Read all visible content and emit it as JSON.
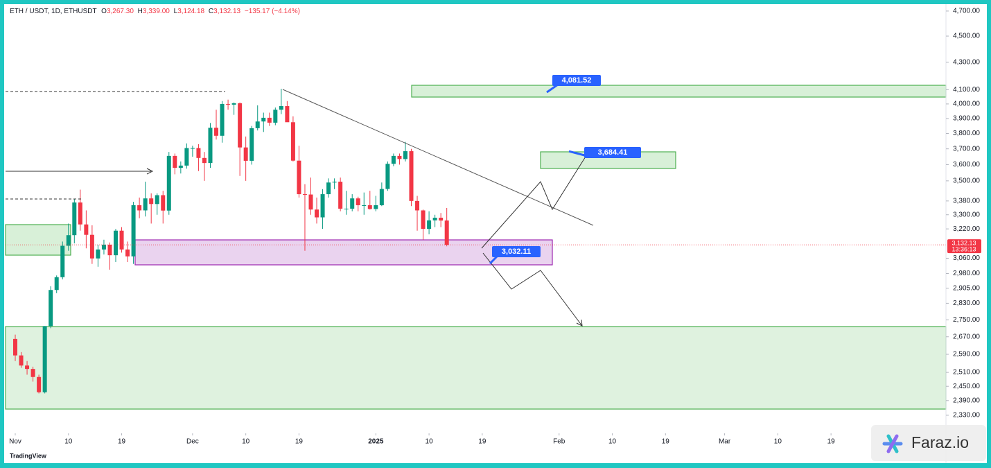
{
  "header": {
    "symbol": "ETH / USDT, 1D, ETHUSDT",
    "o_key": "O",
    "o": "3,267.30",
    "h_key": "H",
    "h": "3,339.00",
    "l_key": "L",
    "l": "3,124.18",
    "c_key": "C",
    "c": "3,132.13",
    "change": "−135.17 (−4.14%)"
  },
  "chart_data": {
    "type": "candlestick",
    "log_scale": true,
    "grid": false,
    "up_color": "#089981",
    "down_color": "#f23645",
    "x": [
      "Nov 1",
      "Nov 2",
      "Nov 3",
      "Nov 4",
      "Nov 5",
      "Nov 6",
      "Nov 7",
      "Nov 8",
      "Nov 9",
      "Nov 10",
      "Nov 11",
      "Nov 12",
      "Nov 13",
      "Nov 14",
      "Nov 15",
      "Nov 16",
      "Nov 17",
      "Nov 18",
      "Nov 19",
      "Nov 20",
      "Nov 21",
      "Nov 22",
      "Nov 23",
      "Nov 24",
      "Nov 25",
      "Nov 26",
      "Nov 27",
      "Nov 28",
      "Nov 29",
      "Nov 30",
      "Dec 1",
      "Dec 2",
      "Dec 3",
      "Dec 4",
      "Dec 5",
      "Dec 6",
      "Dec 7",
      "Dec 8",
      "Dec 9",
      "Dec 10",
      "Dec 11",
      "Dec 12",
      "Dec 13",
      "Dec 14",
      "Dec 15",
      "Dec 16",
      "Dec 17",
      "Dec 18",
      "Dec 19",
      "Dec 20",
      "Dec 21",
      "Dec 22",
      "Dec 23",
      "Dec 24",
      "Dec 25",
      "Dec 26",
      "Dec 27",
      "Dec 28",
      "Dec 29",
      "Dec 30",
      "Dec 31",
      "Jan 1",
      "Jan 2",
      "Jan 3",
      "Jan 4",
      "Jan 5",
      "Jan 6",
      "Jan 7",
      "Jan 8",
      "Jan 9",
      "Jan 10",
      "Jan 11",
      "Jan 12",
      "Jan 13"
    ],
    "open": [
      2660,
      2585,
      2540,
      2525,
      2490,
      2425,
      2720,
      2896,
      2961,
      3127,
      3185,
      3371,
      3245,
      3187,
      3059,
      3107,
      3133,
      3076,
      3210,
      3107,
      3070,
      3355,
      3325,
      3395,
      3362,
      3414,
      3324,
      3655,
      3580,
      3594,
      3705,
      3705,
      3642,
      3610,
      3838,
      3785,
      4000,
      3995,
      4005,
      3709,
      3624,
      3835,
      3880,
      3905,
      3872,
      3960,
      3985,
      3875,
      3625,
      3420,
      3418,
      3330,
      3285,
      3420,
      3490,
      3495,
      3335,
      3335,
      3395,
      3355,
      3355,
      3333,
      3355,
      3451,
      3605,
      3655,
      3635,
      3685,
      3380,
      3325,
      3220,
      3268,
      3283,
      3267.3
    ],
    "high": [
      2680,
      2600,
      2560,
      2535,
      2500,
      2720,
      2915,
      2970,
      3150,
      3250,
      3390,
      3447,
      3325,
      3240,
      3133,
      3160,
      3145,
      3220,
      3230,
      3150,
      3375,
      3400,
      3495,
      3425,
      3425,
      3440,
      3680,
      3670,
      3620,
      3735,
      3720,
      3730,
      3680,
      3870,
      3960,
      4020,
      4030,
      4010,
      4010,
      3780,
      3850,
      3990,
      3940,
      3940,
      3975,
      4107,
      4020,
      3915,
      3720,
      3480,
      3520,
      3400,
      3450,
      3515,
      3515,
      3520,
      3440,
      3420,
      3405,
      3430,
      3440,
      3410,
      3490,
      3620,
      3670,
      3670,
      3745,
      3700,
      3410,
      3330,
      3320,
      3300,
      3310,
      3339.0
    ],
    "low": [
      2560,
      2530,
      2500,
      2470,
      2420,
      2420,
      2710,
      2880,
      2950,
      3100,
      3140,
      3210,
      3113,
      3030,
      3015,
      3080,
      3000,
      3040,
      3090,
      3040,
      3030,
      3280,
      3290,
      3250,
      3300,
      3250,
      3300,
      3540,
      3545,
      3575,
      3650,
      3560,
      3500,
      3580,
      3760,
      3740,
      3960,
      3925,
      3530,
      3500,
      3600,
      3820,
      3810,
      3850,
      3855,
      3930,
      3890,
      3620,
      3400,
      3100,
      3300,
      3250,
      3220,
      3400,
      3450,
      3320,
      3300,
      3320,
      3320,
      3300,
      3330,
      3320,
      3350,
      3440,
      3590,
      3600,
      3620,
      3350,
      3210,
      3160,
      3190,
      3230,
      3230,
      3124.18
    ],
    "close": [
      2585,
      2540,
      2525,
      2490,
      2425,
      2720,
      2896,
      2961,
      3127,
      3185,
      3371,
      3245,
      3187,
      3059,
      3107,
      3133,
      3076,
      3210,
      3107,
      3070,
      3355,
      3325,
      3395,
      3362,
      3414,
      3324,
      3655,
      3580,
      3594,
      3705,
      3705,
      3642,
      3610,
      3838,
      3785,
      4000,
      3995,
      4005,
      3709,
      3624,
      3835,
      3880,
      3905,
      3872,
      3960,
      3985,
      3875,
      3625,
      3420,
      3418,
      3330,
      3285,
      3420,
      3490,
      3495,
      3335,
      3335,
      3395,
      3355,
      3355,
      3333,
      3355,
      3451,
      3605,
      3655,
      3635,
      3685,
      3380,
      3325,
      3220,
      3268,
      3283,
      3267,
      3132.13
    ],
    "ylim": [
      2258,
      4745
    ],
    "yticks": [
      {
        "value": 4700,
        "label": "4,700.00"
      },
      {
        "value": 4500,
        "label": "4,500.00"
      },
      {
        "value": 4300,
        "label": "4,300.00"
      },
      {
        "value": 4100,
        "label": "4,100.00"
      },
      {
        "value": 4000,
        "label": "4,000.00"
      },
      {
        "value": 3900,
        "label": "3,900.00"
      },
      {
        "value": 3800,
        "label": "3,800.00"
      },
      {
        "value": 3700,
        "label": "3,700.00"
      },
      {
        "value": 3600,
        "label": "3,600.00"
      },
      {
        "value": 3500,
        "label": "3,500.00"
      },
      {
        "value": 3380,
        "label": "3,380.00"
      },
      {
        "value": 3300,
        "label": "3,300.00"
      },
      {
        "value": 3220,
        "label": "3,220.00"
      },
      {
        "value": 3060,
        "label": "3,060.00"
      },
      {
        "value": 2980,
        "label": "2,980.00"
      },
      {
        "value": 2905,
        "label": "2,905.00"
      },
      {
        "value": 2830,
        "label": "2,830.00"
      },
      {
        "value": 2750,
        "label": "2,750.00"
      },
      {
        "value": 2670,
        "label": "2,670.00"
      },
      {
        "value": 2590,
        "label": "2,590.00"
      },
      {
        "value": 2510,
        "label": "2,510.00"
      },
      {
        "value": 2450,
        "label": "2,450.00"
      },
      {
        "value": 2390,
        "label": "2,390.00"
      },
      {
        "value": 2330,
        "label": "2,330.00"
      }
    ],
    "xticks": [
      {
        "value": "Nov 1",
        "label": "Nov"
      },
      {
        "value": "Nov 10",
        "label": "10"
      },
      {
        "value": "Nov 19",
        "label": "19"
      },
      {
        "value": "Dec 1",
        "label": "Dec"
      },
      {
        "value": "Dec 10",
        "label": "10"
      },
      {
        "value": "Dec 19",
        "label": "19"
      },
      {
        "value": "Jan 1",
        "label": "2025"
      },
      {
        "value": "Jan 10",
        "label": "10"
      },
      {
        "value": "Jan 19",
        "label": "19"
      },
      {
        "value": "Feb 1",
        "label": "Feb"
      },
      {
        "value": "Feb 10",
        "label": "10"
      },
      {
        "value": "Feb 19",
        "label": "19"
      },
      {
        "value": "Mar 1",
        "label": "Mar"
      },
      {
        "value": "Mar 10",
        "label": "10"
      },
      {
        "value": "Mar 19",
        "label": "19"
      }
    ],
    "last_price": {
      "value": 3132.13,
      "label": "3,132.13",
      "countdown": "13:36:13"
    },
    "annotations": [
      {
        "value": 4081.52,
        "label": "4,081.52"
      },
      {
        "value": 3684.41,
        "label": "3,684.41"
      },
      {
        "value": 3032.11,
        "label": "3,032.11"
      }
    ]
  },
  "footer": {
    "logo": "TradingView",
    "watermark": "Faraz.io"
  }
}
